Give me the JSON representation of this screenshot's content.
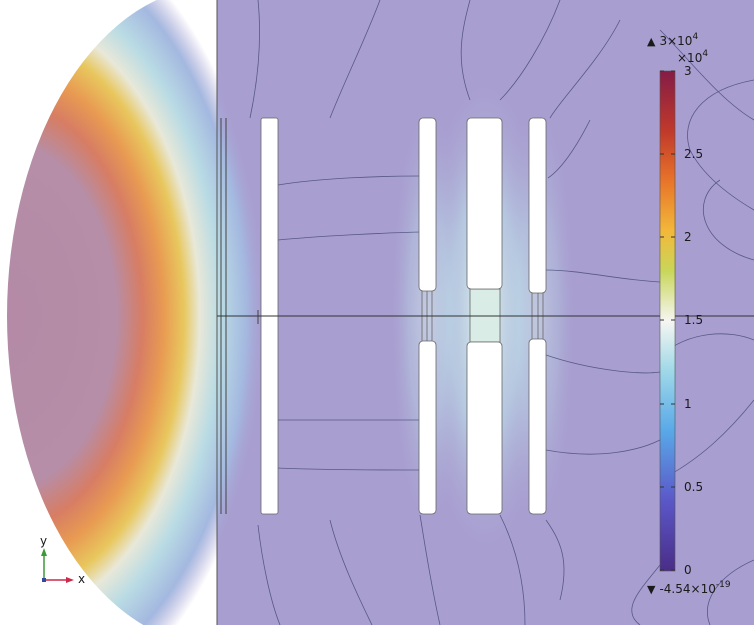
{
  "colorbar": {
    "max_prefix": "3×10",
    "max_exp": "4",
    "scale_prefix": "×10",
    "scale_exp": "4",
    "min_prefix": "-4.54×10",
    "min_exp": "-19",
    "ticks": [
      "3",
      "2.5",
      "2",
      "1.5",
      "1",
      "0.5",
      "0"
    ],
    "colors": [
      "#841c46",
      "#c0392b",
      "#e8742a",
      "#f2b83a",
      "#c9d65a",
      "#f6f6f2",
      "#9fd8e8",
      "#59a8e8",
      "#5b57c8",
      "#4a2d87"
    ]
  },
  "axes": {
    "x_label": "x",
    "y_label": "y"
  },
  "colors": {
    "background_field": "#a89ed0",
    "axis_x": "#cc2a4a",
    "axis_y": "#3a9a3a",
    "contour": "#3d4170",
    "geometry_border": "#555555"
  }
}
